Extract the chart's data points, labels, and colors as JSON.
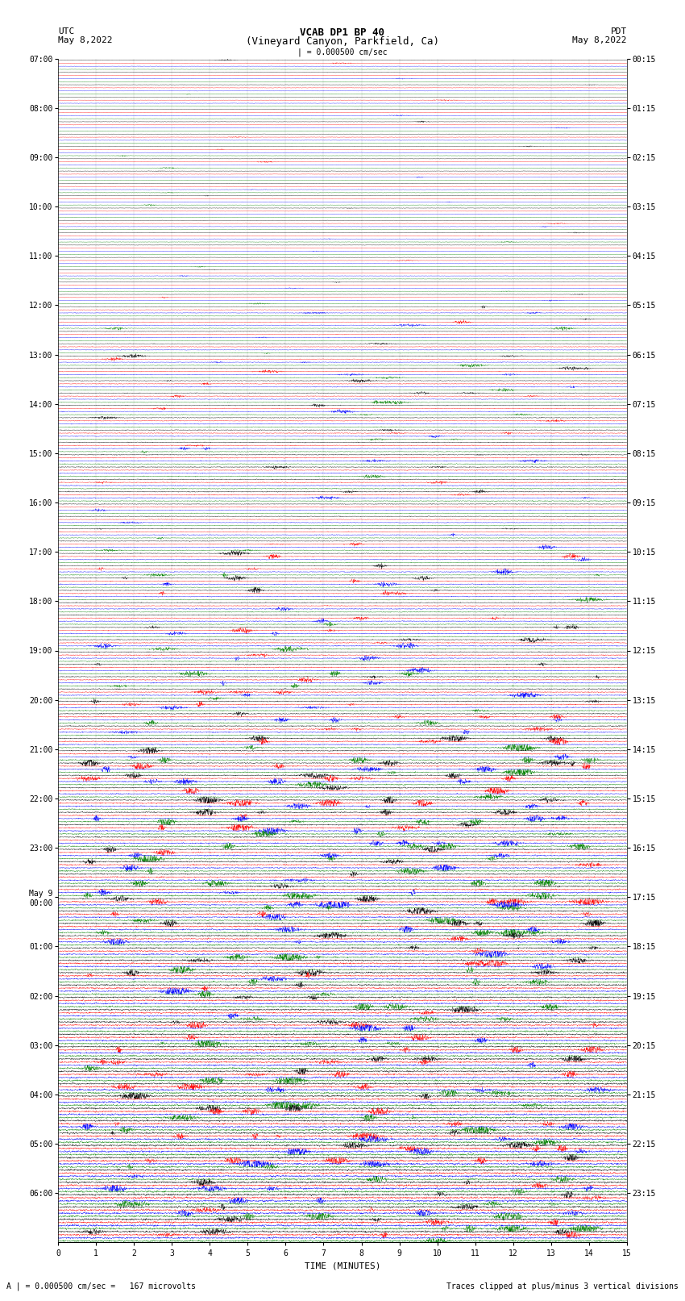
{
  "title_line1": "VCAB DP1 BP 40",
  "title_line2": "(Vineyard Canyon, Parkfield, Ca)",
  "scale_label": "| = 0.000500 cm/sec",
  "left_label": "UTC",
  "left_date": "May 8,2022",
  "right_label": "PDT",
  "right_date": "May 8,2022",
  "xlabel": "TIME (MINUTES)",
  "footer_left": "A | = 0.000500 cm/sec =   167 microvolts",
  "footer_right": "Traces clipped at plus/minus 3 vertical divisions",
  "xlim": [
    0,
    15
  ],
  "xticks": [
    0,
    1,
    2,
    3,
    4,
    5,
    6,
    7,
    8,
    9,
    10,
    11,
    12,
    13,
    14,
    15
  ],
  "colors": [
    "black",
    "red",
    "blue",
    "green"
  ],
  "utc_labels": [
    [
      "07:00",
      0
    ],
    [
      "08:00",
      4
    ],
    [
      "09:00",
      8
    ],
    [
      "10:00",
      12
    ],
    [
      "11:00",
      16
    ],
    [
      "12:00",
      20
    ],
    [
      "13:00",
      24
    ],
    [
      "14:00",
      28
    ],
    [
      "15:00",
      32
    ],
    [
      "16:00",
      36
    ],
    [
      "17:00",
      40
    ],
    [
      "18:00",
      44
    ],
    [
      "19:00",
      48
    ],
    [
      "20:00",
      52
    ],
    [
      "21:00",
      56
    ],
    [
      "22:00",
      60
    ],
    [
      "23:00",
      64
    ],
    [
      "May 9\n00:00",
      68
    ],
    [
      "01:00",
      72
    ],
    [
      "02:00",
      76
    ],
    [
      "03:00",
      80
    ],
    [
      "04:00",
      84
    ],
    [
      "05:00",
      88
    ],
    [
      "06:00",
      92
    ]
  ],
  "pdt_labels": [
    [
      "00:15",
      0
    ],
    [
      "01:15",
      4
    ],
    [
      "02:15",
      8
    ],
    [
      "03:15",
      12
    ],
    [
      "04:15",
      16
    ],
    [
      "05:15",
      20
    ],
    [
      "06:15",
      24
    ],
    [
      "07:15",
      28
    ],
    [
      "08:15",
      32
    ],
    [
      "09:15",
      36
    ],
    [
      "10:15",
      40
    ],
    [
      "11:15",
      44
    ],
    [
      "12:15",
      48
    ],
    [
      "13:15",
      52
    ],
    [
      "14:15",
      56
    ],
    [
      "15:15",
      60
    ],
    [
      "16:15",
      64
    ],
    [
      "17:15",
      68
    ],
    [
      "18:15",
      72
    ],
    [
      "19:15",
      76
    ],
    [
      "20:15",
      80
    ],
    [
      "21:15",
      84
    ],
    [
      "22:15",
      88
    ],
    [
      "23:15",
      92
    ]
  ],
  "n_rows": 96,
  "n_channels": 4,
  "bg_color": "#ffffff",
  "font_size_title": 9,
  "font_size_labels": 8,
  "font_size_ticks": 7,
  "font_size_footer": 7
}
